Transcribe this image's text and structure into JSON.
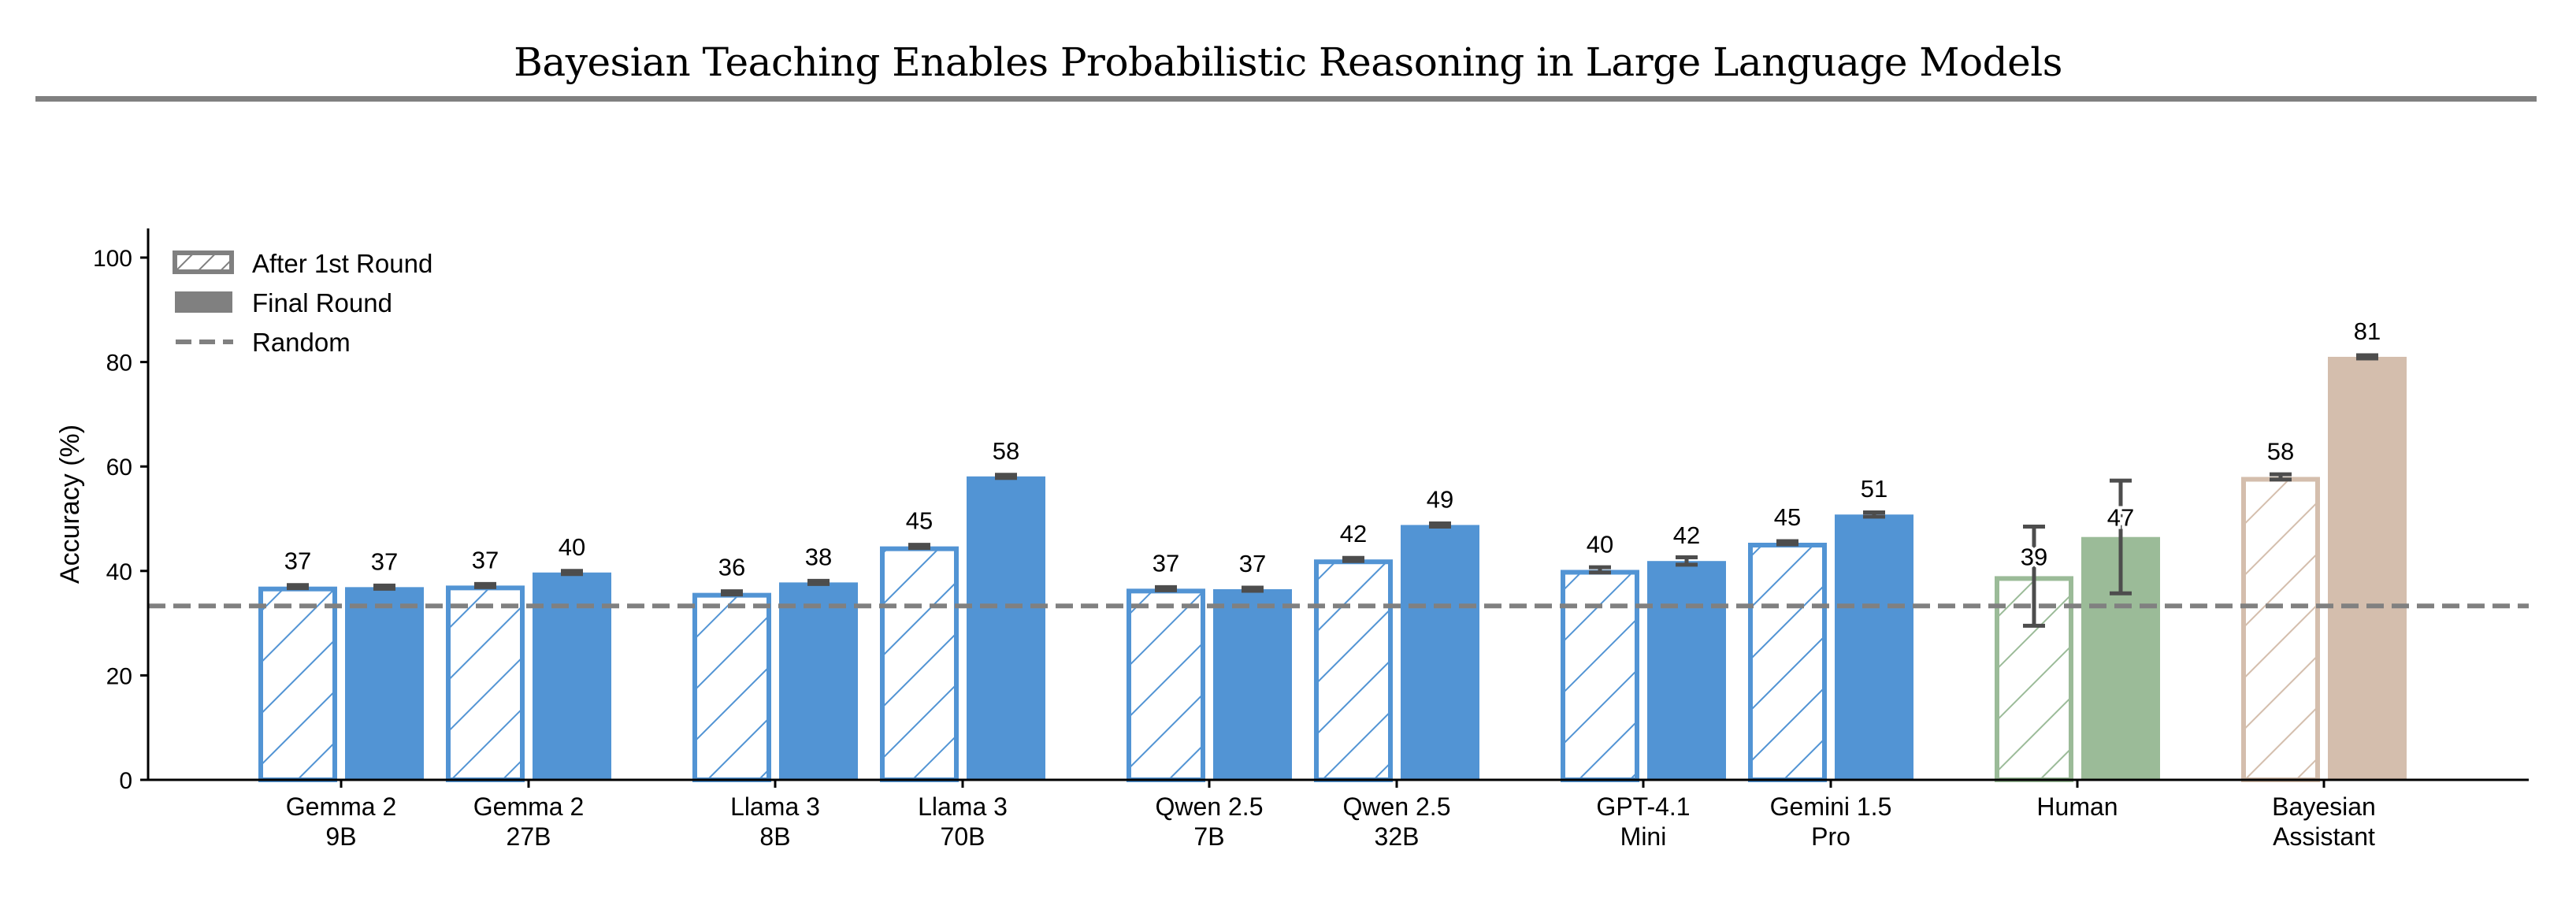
{
  "header": {
    "title": "Bayesian Teaching Enables Probabilistic Reasoning in Large Language Models"
  },
  "chart_data": {
    "type": "bar",
    "title": "Bayesian Teaching Enables Probabilistic Reasoning in Large Language Models",
    "xlabel": "",
    "ylabel": "Accuracy (%)",
    "ylim": [
      0,
      105
    ],
    "yticks": [
      0,
      20,
      40,
      60,
      80,
      100
    ],
    "grid": false,
    "legend": {
      "placement": "top-left",
      "entries": [
        {
          "label": "After 1st Round",
          "style": "hatched"
        },
        {
          "label": "Final Round",
          "style": "filled"
        },
        {
          "label": "Random",
          "style": "dashed-line"
        }
      ]
    },
    "reference_line": {
      "name": "Random",
      "value": 33.3,
      "color": "#808080"
    },
    "categories": [
      {
        "label": [
          "Gemma 2",
          "9B"
        ],
        "group": 0
      },
      {
        "label": [
          "Gemma 2",
          "27B"
        ],
        "group": 0
      },
      {
        "label": [
          "Llama 3",
          "8B"
        ],
        "group": 1
      },
      {
        "label": [
          "Llama 3",
          "70B"
        ],
        "group": 1
      },
      {
        "label": [
          "Qwen 2.5",
          "7B"
        ],
        "group": 2
      },
      {
        "label": [
          "Qwen 2.5",
          "32B"
        ],
        "group": 2
      },
      {
        "label": [
          "GPT-4.1",
          "Mini"
        ],
        "group": 3
      },
      {
        "label": [
          "Gemini 1.5",
          "Pro"
        ],
        "group": 3
      },
      {
        "label": [
          "Human"
        ],
        "group": 4
      },
      {
        "label": [
          "Bayesian",
          "Assistant"
        ],
        "group": 5
      }
    ],
    "colors": [
      "#5294d4",
      "#5294d4",
      "#5294d4",
      "#5294d4",
      "#5294d4",
      "#5294d4",
      "#5294d4",
      "#5294d4",
      "#9bbb98",
      "#d4bead"
    ],
    "series": [
      {
        "name": "After 1st Round",
        "style": "hatched",
        "values": [
          37.0,
          37.2,
          35.8,
          44.7,
          36.6,
          42.2,
          40.2,
          45.4,
          39.0,
          58.0
        ],
        "labels": [
          "37",
          "37",
          "36",
          "45",
          "37",
          "42",
          "40",
          "45",
          "39",
          "58"
        ],
        "errors": [
          0.3,
          0.3,
          0.3,
          0.3,
          0.3,
          0.3,
          0.5,
          0.3,
          9.5,
          0.5
        ]
      },
      {
        "name": "Final Round",
        "style": "filled",
        "values": [
          36.9,
          39.7,
          37.8,
          58.1,
          36.5,
          48.8,
          41.9,
          50.8,
          46.5,
          81.0
        ],
        "labels": [
          "37",
          "40",
          "38",
          "58",
          "37",
          "49",
          "42",
          "51",
          "47",
          "81"
        ],
        "errors": [
          0.3,
          0.3,
          0.3,
          0.3,
          0.3,
          0.3,
          0.7,
          0.4,
          10.8,
          0.3
        ]
      }
    ]
  }
}
